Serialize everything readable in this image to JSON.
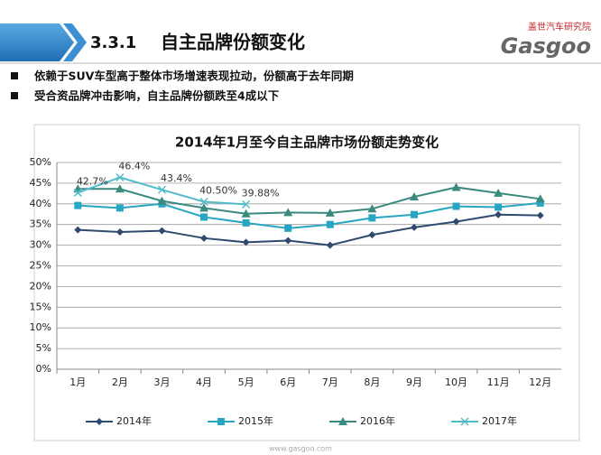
{
  "header": {
    "number": "3.3.1",
    "title": "自主品牌份额变化"
  },
  "logo": {
    "name": "盖世汽车研究院",
    "brand": "Gasgoo"
  },
  "bullets": [
    "依赖于SUV车型高于整体市场增速表现拉动，份额高于去年同期",
    "受合资品牌冲击影响，自主品牌份额跌至4成以下"
  ],
  "footer": "www.gasgoo.com",
  "chart_data": {
    "type": "line",
    "title": "2014年1月至今自主品牌市场份额走势变化",
    "categories": [
      "1月",
      "2月",
      "3月",
      "4月",
      "5月",
      "6月",
      "7月",
      "8月",
      "9月",
      "10月",
      "11月",
      "12月"
    ],
    "series": [
      {
        "name": "2014年",
        "color": "#2f4a6e",
        "marker": "diamond",
        "values": [
          33.7,
          33.2,
          33.5,
          31.7,
          30.7,
          31.1,
          30.0,
          32.5,
          34.3,
          35.7,
          37.4,
          37.2
        ]
      },
      {
        "name": "2015年",
        "color": "#26a6c2",
        "marker": "square",
        "values": [
          39.6,
          39.0,
          40.0,
          36.8,
          35.4,
          34.1,
          35.0,
          36.6,
          37.4,
          39.4,
          39.2,
          40.2
        ]
      },
      {
        "name": "2016年",
        "color": "#3a8a7e",
        "marker": "triangle",
        "values": [
          43.6,
          43.6,
          40.7,
          39.0,
          37.6,
          37.9,
          37.8,
          38.8,
          41.7,
          44.0,
          42.6,
          41.2
        ]
      },
      {
        "name": "2017年",
        "color": "#52bccb",
        "marker": "x",
        "values": [
          42.7,
          46.4,
          43.4,
          40.5,
          39.88,
          null,
          null,
          null,
          null,
          null,
          null,
          null
        ],
        "value_labels": [
          "42.7%",
          "46.4%",
          "43.4%",
          "40.50%",
          "39.88%",
          null,
          null,
          null,
          null,
          null,
          null,
          null
        ]
      }
    ],
    "ylim": [
      0,
      50
    ],
    "yticks": [
      {
        "value": 0,
        "label": "0%"
      },
      {
        "value": 5,
        "label": "5%"
      },
      {
        "value": 10,
        "label": "10%"
      },
      {
        "value": 15,
        "label": "15%"
      },
      {
        "value": 20,
        "label": "20%"
      },
      {
        "value": 25,
        "label": "25%"
      },
      {
        "value": 30,
        "label": "30%"
      },
      {
        "value": 35,
        "label": "35%"
      },
      {
        "value": 40,
        "label": "40%"
      },
      {
        "value": 45,
        "label": "45%"
      },
      {
        "value": 50,
        "label": "50%"
      }
    ],
    "grid": true,
    "legend": "bottom"
  }
}
